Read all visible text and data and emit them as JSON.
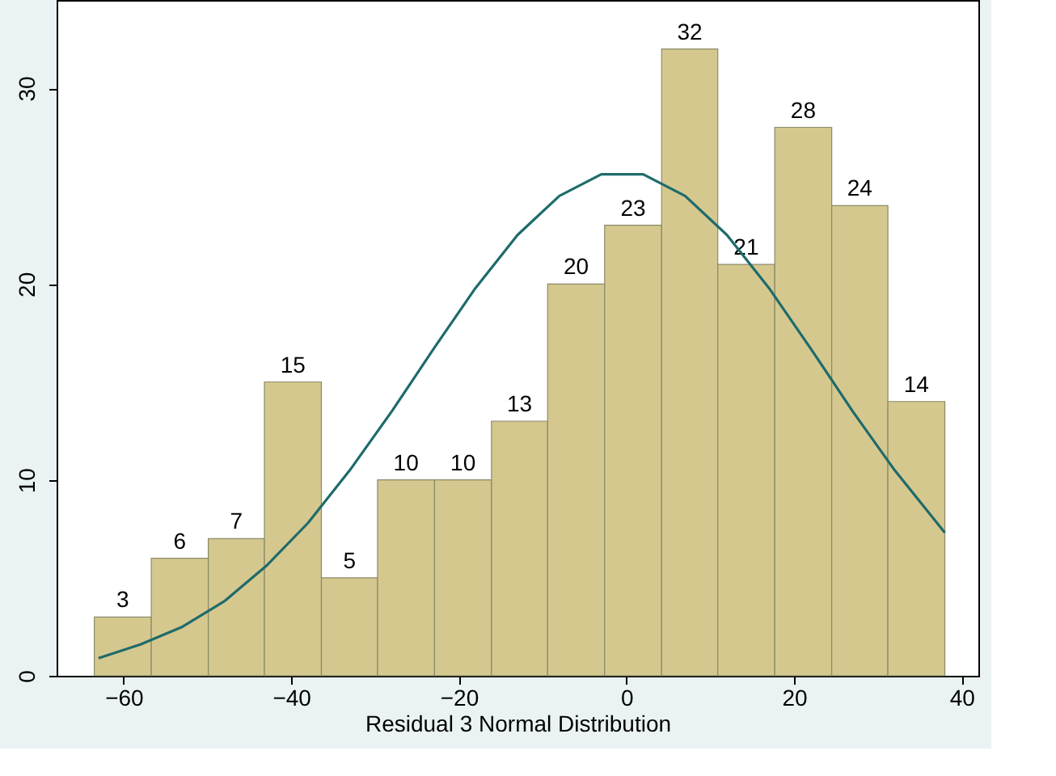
{
  "chart_data": {
    "type": "histogram",
    "xlabel": "Residual 3 Normal Distribution",
    "bins": [
      -63.5,
      -56.7,
      -49.9,
      -43.2,
      -36.4,
      -29.7,
      -22.9,
      -16.1,
      -9.4,
      -2.6,
      4.2,
      10.9,
      17.7,
      24.5,
      31.2,
      38.0
    ],
    "values": [
      3,
      6,
      7,
      15,
      5,
      10,
      10,
      13,
      20,
      23,
      32,
      21,
      28,
      24,
      14
    ],
    "color": "#d5c88e",
    "value_labels": [
      "3",
      "6",
      "7",
      "15",
      "5",
      "10",
      "10",
      "13",
      "20",
      "23",
      "32",
      "21",
      "28",
      "24",
      "14"
    ],
    "series": [
      {
        "type": "line",
        "color": "#1e6b6b",
        "x": [
          -63,
          -58,
          -53,
          -48,
          -43,
          -38,
          -33,
          -28,
          -23,
          -18,
          -13,
          -8,
          -3,
          2,
          7,
          12,
          17,
          22,
          27,
          32,
          38
        ],
        "values": [
          0.9,
          1.6,
          2.5,
          3.8,
          5.6,
          7.8,
          10.5,
          13.5,
          16.7,
          19.8,
          22.5,
          24.5,
          25.6,
          25.6,
          24.5,
          22.5,
          19.8,
          16.7,
          13.5,
          10.5,
          7.3
        ]
      }
    ],
    "xlim": [
      -68,
      42
    ],
    "ylim": [
      0,
      34.5
    ],
    "xticks": [
      -60,
      -40,
      -20,
      0,
      20,
      40
    ],
    "yticks": [
      0,
      10,
      20,
      30
    ],
    "grid": false
  }
}
